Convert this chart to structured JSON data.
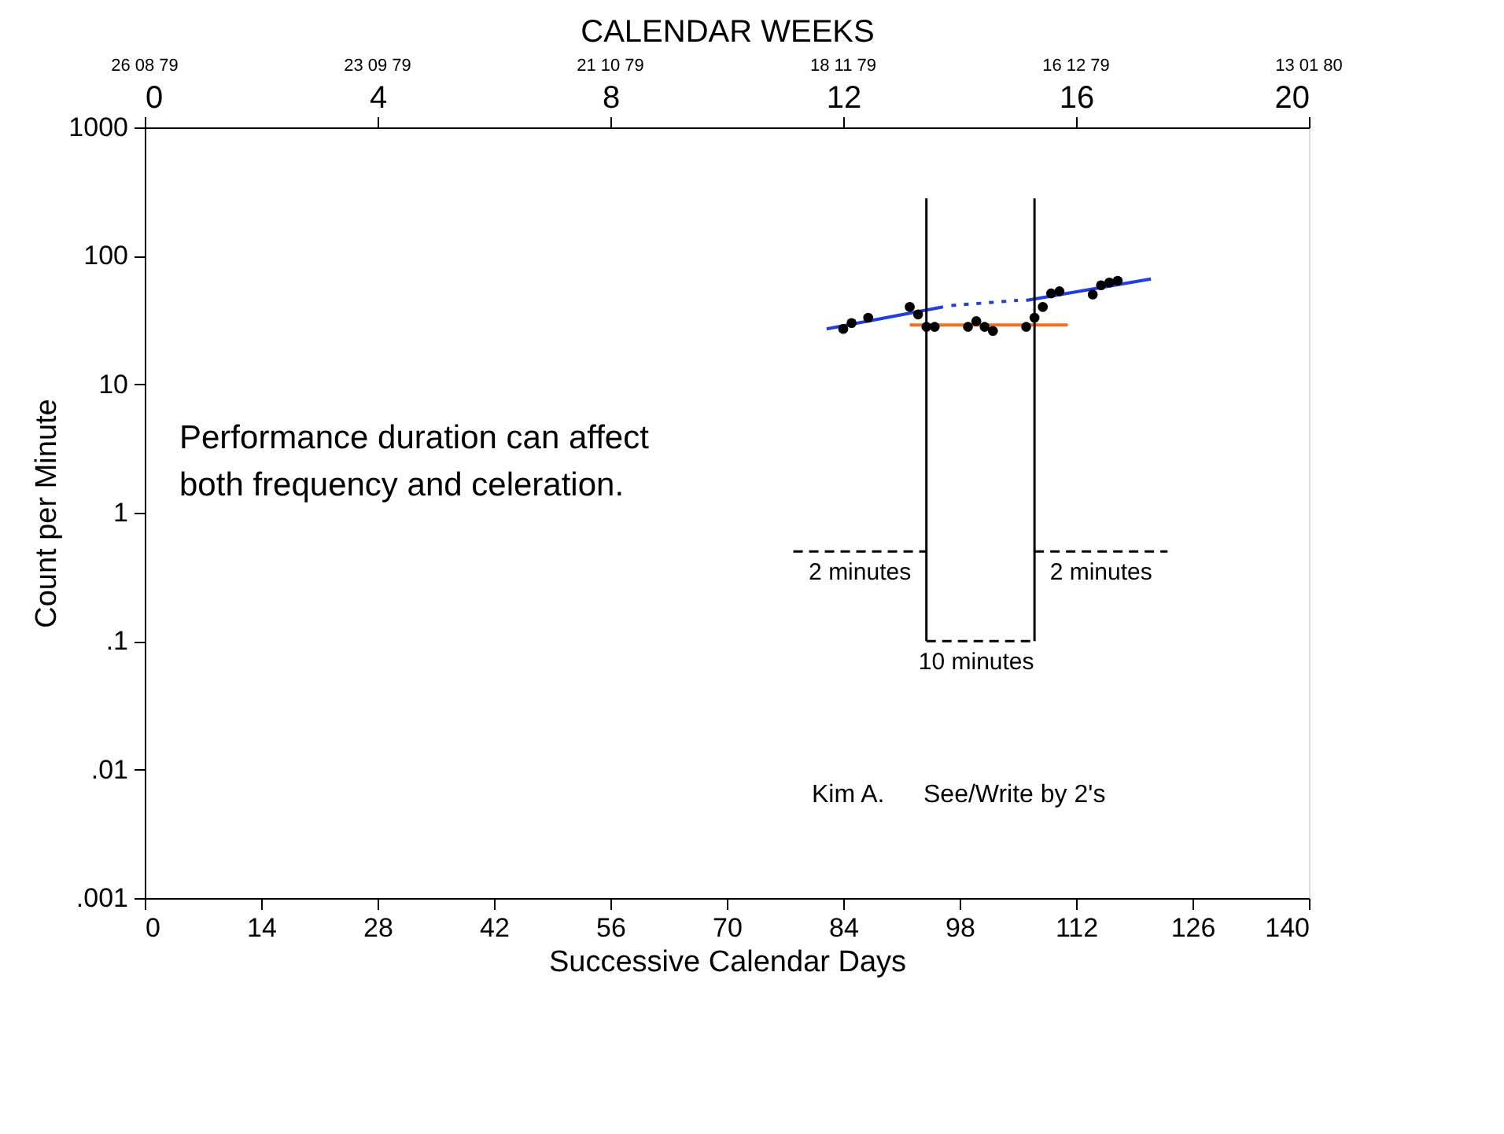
{
  "chart_data": {
    "type": "scatter",
    "xlabel": "Successive Calendar Days",
    "ylabel": "Count per Minute",
    "x2label": "CALENDAR WEEKS",
    "xlim": [
      0,
      140
    ],
    "xticks": [
      0,
      14,
      28,
      42,
      56,
      70,
      84,
      98,
      112,
      126,
      140
    ],
    "x2lim": [
      0,
      20
    ],
    "x2ticks": [
      0,
      4,
      8,
      12,
      16,
      20
    ],
    "log": "y",
    "ylim": [
      0.001,
      1000
    ],
    "yticks": [
      {
        "value": 0.001,
        "label": ".001"
      },
      {
        "value": 0.01,
        "label": ".01"
      },
      {
        "value": 0.1,
        "label": ".1"
      },
      1,
      10,
      100,
      {
        "value": 1000,
        "label": "1000"
      }
    ],
    "grid": false,
    "series": [
      {
        "color": "#000000",
        "marker": "circle",
        "x": [
          84,
          85,
          87,
          92,
          93,
          94,
          95,
          99,
          100,
          101,
          102,
          106,
          107,
          108,
          109,
          110,
          114,
          115,
          116,
          117
        ],
        "values": [
          27,
          30,
          33,
          40,
          35,
          28,
          28,
          28,
          31,
          28,
          26,
          28,
          33,
          40,
          51,
          53,
          50,
          59,
          62,
          64
        ]
      },
      {
        "type": "line",
        "color": "#1f3fe0",
        "line_style": "solid",
        "x": [
          82,
          96
        ],
        "values": [
          27,
          40
        ]
      },
      {
        "type": "line",
        "color": "#1f3fe0",
        "line_style": "dotted",
        "x": [
          97,
          105
        ],
        "values": [
          41,
          45
        ]
      },
      {
        "type": "line",
        "color": "#1f3fe0",
        "line_style": "solid",
        "x": [
          106,
          121
        ],
        "values": [
          45,
          66
        ]
      },
      {
        "type": "line",
        "color": "#f07020",
        "line_style": "solid",
        "x": [
          92,
          111
        ],
        "values": [
          29,
          29
        ]
      },
      {
        "type": "line",
        "color": "#000000",
        "line_style": "solid",
        "x": [
          94,
          94
        ],
        "values": [
          280,
          0.1
        ]
      },
      {
        "type": "line",
        "color": "#000000",
        "line_style": "solid",
        "x": [
          107,
          107
        ],
        "values": [
          280,
          0.1
        ]
      },
      {
        "type": "line",
        "color": "#000000",
        "line_style": "dashed",
        "x": [
          78,
          94
        ],
        "values": [
          0.5,
          0.5
        ]
      },
      {
        "type": "line",
        "color": "#000000",
        "line_style": "dashed",
        "x": [
          94,
          107
        ],
        "values": [
          0.1,
          0.1
        ]
      },
      {
        "type": "line",
        "color": "#000000",
        "line_style": "dashed",
        "x": [
          107,
          123
        ],
        "values": [
          0.5,
          0.5
        ]
      }
    ],
    "annotations": [
      "Performance duration can affect",
      "both frequency and celeration.",
      "Kim A.",
      "See/Write by 2's",
      "26 08 79",
      "23 09 79",
      "21 10 79",
      "18 11 79",
      "16 12 79",
      "13 01 80",
      {
        "text": "2 minutes",
        "x": 86,
        "y": 0.5
      },
      {
        "text": "10 minutes",
        "x": 100,
        "y": 0.1
      },
      {
        "text": "2 minutes",
        "x": 115,
        "y": 0.5
      }
    ]
  }
}
